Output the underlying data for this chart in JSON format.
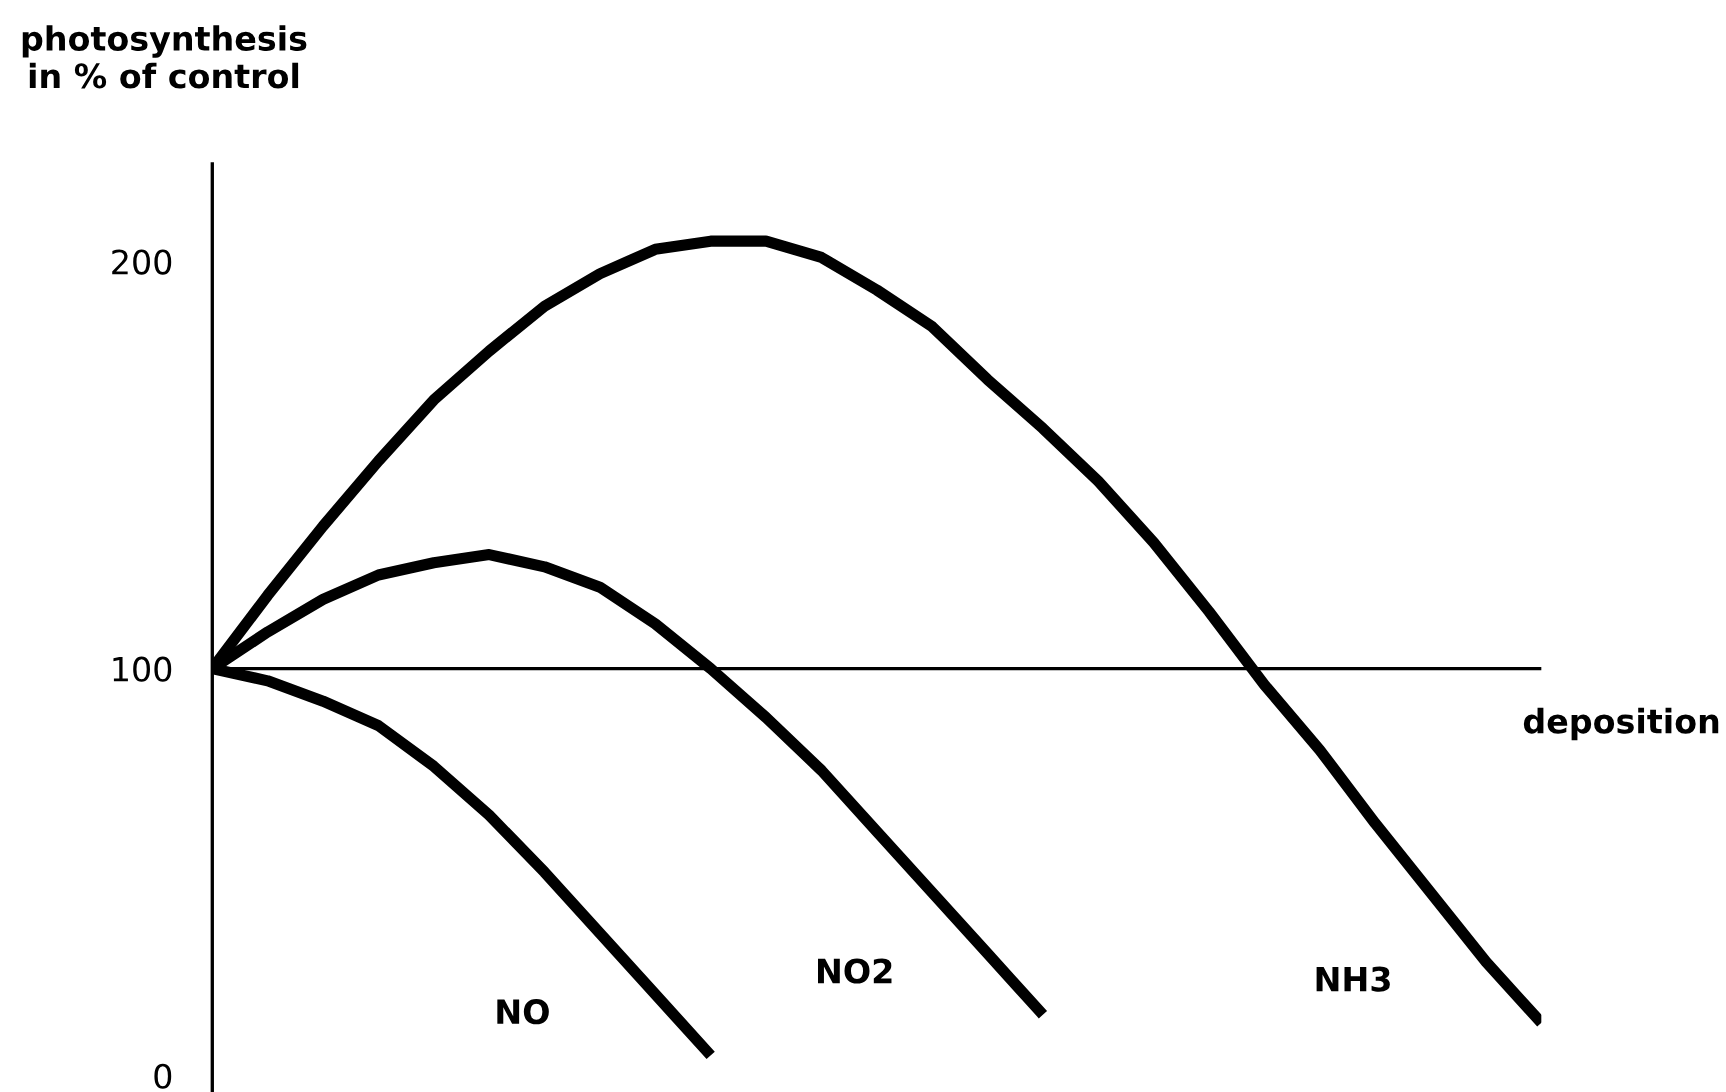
{
  "chart_data": {
    "type": "line",
    "ylabel": "photosynthesis\nin % of control",
    "xlabel": "deposition",
    "categories": [
      null,
      null,
      null,
      null,
      null,
      null,
      null,
      null,
      null,
      null,
      null,
      null,
      null,
      null,
      null,
      null,
      null,
      null,
      null,
      null,
      null,
      null,
      null,
      null,
      null
    ],
    "series": [
      {
        "name": "NO",
        "color": "#000000",
        "values": [
          100,
          97,
          92,
          86,
          76,
          64,
          50,
          35,
          20,
          5,
          null,
          null,
          null,
          null,
          null,
          null,
          null,
          null,
          null,
          null,
          null,
          null,
          null,
          null,
          null
        ]
      },
      {
        "name": "NO2",
        "color": "#000000",
        "values": [
          100,
          109,
          117,
          123,
          126,
          128,
          125,
          120,
          111,
          100,
          88,
          75,
          60,
          45,
          30,
          15,
          null,
          null,
          null,
          null,
          null,
          null,
          null,
          null,
          null
        ]
      },
      {
        "name": "NH3",
        "color": "#000000",
        "values": [
          100,
          118,
          135,
          151,
          166,
          178,
          189,
          197,
          203,
          205,
          205,
          201,
          193,
          184,
          171,
          159,
          146,
          131,
          114,
          96,
          80,
          62,
          45,
          28,
          13
        ]
      }
    ],
    "ref_lines": [
      {
        "axis": "y",
        "value": 100,
        "color": "#000000"
      }
    ],
    "ylim": [
      -4,
      224
    ],
    "yticks": [
      0,
      100,
      200
    ],
    "grid": false,
    "legend": false,
    "tick_labels": "y",
    "marker": "none",
    "line_style": "solid"
  }
}
